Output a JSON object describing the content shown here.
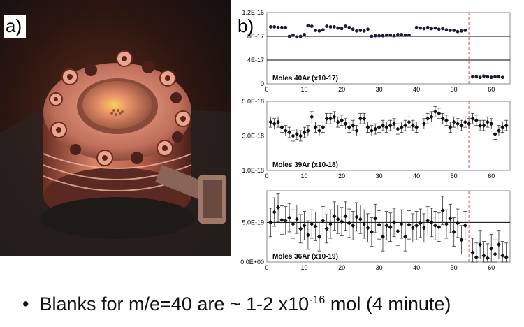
{
  "panel_labels": {
    "a": "a)",
    "b": "b)"
  },
  "photo": {
    "subject": "stainless steel vacuum flange with bolts glowing under red laser light"
  },
  "bullet": {
    "marker": "•",
    "pre": "Blanks for m/e=40 are ~ 1-2 x10",
    "exp": "-16",
    "post": " mol (4 minute)"
  },
  "colors": {
    "dots": "#1a1a3a",
    "line": "#000000",
    "dashed": "#e05050"
  },
  "chart_data": [
    {
      "type": "scatter",
      "title": "Moles 40Ar (x10-17)",
      "ylim": [
        0,
        1.2e-16
      ],
      "xlim": [
        0,
        65
      ],
      "y_ticks": [
        "0",
        "4E-17",
        "8E-17",
        "1.2E-16"
      ],
      "x_ticks": [
        "0",
        "10",
        "20",
        "30",
        "40",
        "50",
        "60"
      ],
      "hlines": [
        8e-17,
        4e-17
      ],
      "vline_x": 54,
      "error_bars": false,
      "points": [
        [
          1,
          9.6e-17
        ],
        [
          2,
          9.6e-17
        ],
        [
          3,
          9.5e-17
        ],
        [
          4,
          9.5e-17
        ],
        [
          5,
          9.5e-17
        ],
        [
          6,
          8e-17
        ],
        [
          7,
          8.2e-17
        ],
        [
          8,
          7.9e-17
        ],
        [
          9,
          8e-17
        ],
        [
          10,
          8.3e-17
        ],
        [
          11,
          9.8e-17
        ],
        [
          12,
          9.7e-17
        ],
        [
          13,
          9e-17
        ],
        [
          14,
          8.9e-17
        ],
        [
          15,
          9.1e-17
        ],
        [
          16,
          9.7e-17
        ],
        [
          17,
          9.6e-17
        ],
        [
          18,
          9.6e-17
        ],
        [
          19,
          9.4e-17
        ],
        [
          20,
          9.3e-17
        ],
        [
          21,
          9.7e-17
        ],
        [
          22,
          9.5e-17
        ],
        [
          23,
          9.2e-17
        ],
        [
          24,
          8.9e-17
        ],
        [
          25,
          9e-17
        ],
        [
          26,
          8.9e-17
        ],
        [
          27,
          9.2e-17
        ],
        [
          28,
          8e-17
        ],
        [
          29,
          8.1e-17
        ],
        [
          30,
          8.1e-17
        ],
        [
          31,
          8.1e-17
        ],
        [
          32,
          8.2e-17
        ],
        [
          33,
          8.2e-17
        ],
        [
          34,
          8.1e-17
        ],
        [
          35,
          8.3e-17
        ],
        [
          36,
          8.3e-17
        ],
        [
          37,
          8.2e-17
        ],
        [
          38,
          8.2e-17
        ],
        [
          40,
          9.5e-17
        ],
        [
          41,
          9.4e-17
        ],
        [
          42,
          9.3e-17
        ],
        [
          43,
          9.5e-17
        ],
        [
          44,
          9.3e-17
        ],
        [
          45,
          9.4e-17
        ],
        [
          46,
          9.2e-17
        ],
        [
          47,
          9.3e-17
        ],
        [
          48,
          9.1e-17
        ],
        [
          49,
          9e-17
        ],
        [
          50,
          9e-17
        ],
        [
          51,
          8.8e-17
        ],
        [
          52,
          8.9e-17
        ],
        [
          53,
          9e-17
        ],
        [
          55,
          1.2e-17
        ],
        [
          56,
          1.2e-17
        ],
        [
          57,
          1.1e-17
        ],
        [
          58,
          1.3e-17
        ],
        [
          59,
          1.2e-17
        ],
        [
          60,
          1.1e-17
        ],
        [
          61,
          1.2e-17
        ],
        [
          62,
          1.2e-17
        ],
        [
          63,
          1.1e-17
        ]
      ]
    },
    {
      "type": "scatter",
      "title": "Moles 39Ar (x10-18)",
      "ylim": [
        1e-18,
        5e-18
      ],
      "xlim": [
        0,
        65
      ],
      "y_ticks": [
        "1.0E-18",
        "3.0E-18",
        "5.0E-18"
      ],
      "x_ticks": [
        "0",
        "10",
        "20",
        "30",
        "40",
        "50",
        "60"
      ],
      "hlines": [
        3e-18
      ],
      "vline_x": 54,
      "error_bars": true,
      "err": 3e-19,
      "points": [
        [
          1,
          3.8e-18
        ],
        [
          2,
          3.7e-18
        ],
        [
          3,
          3.8e-18
        ],
        [
          4,
          3.5e-18
        ],
        [
          5,
          3.3e-18
        ],
        [
          6,
          3.2e-18
        ],
        [
          7,
          3e-18
        ],
        [
          8,
          3.1e-18
        ],
        [
          9,
          3e-18
        ],
        [
          10,
          3.2e-18
        ],
        [
          11,
          3.3e-18
        ],
        [
          12,
          4.1e-18
        ],
        [
          13,
          3.5e-18
        ],
        [
          14,
          3.3e-18
        ],
        [
          15,
          3.5e-18
        ],
        [
          16,
          4e-18
        ],
        [
          17,
          4e-18
        ],
        [
          18,
          4.1e-18
        ],
        [
          19,
          3.8e-18
        ],
        [
          20,
          3.9e-18
        ],
        [
          21,
          3.7e-18
        ],
        [
          22,
          3.5e-18
        ],
        [
          23,
          3.6e-18
        ],
        [
          24,
          3.3e-18
        ],
        [
          25,
          4e-18
        ],
        [
          26,
          4e-18
        ],
        [
          27,
          3.5e-18
        ],
        [
          28,
          3.3e-18
        ],
        [
          29,
          3.4e-18
        ],
        [
          30,
          3.5e-18
        ],
        [
          31,
          3.6e-18
        ],
        [
          32,
          3.5e-18
        ],
        [
          33,
          3.6e-18
        ],
        [
          34,
          3.7e-18
        ],
        [
          35,
          3.4e-18
        ],
        [
          36,
          3.5e-18
        ],
        [
          37,
          3.6e-18
        ],
        [
          38,
          3.8e-18
        ],
        [
          39,
          3.6e-18
        ],
        [
          40,
          3.5e-18
        ],
        [
          42,
          3.7e-18
        ],
        [
          43,
          4e-18
        ],
        [
          44,
          4.1e-18
        ],
        [
          45,
          4.4e-18
        ],
        [
          46,
          4.3e-18
        ],
        [
          47,
          4e-18
        ],
        [
          48,
          3.9e-18
        ],
        [
          49,
          3.5e-18
        ],
        [
          50,
          3.8e-18
        ],
        [
          51,
          3.7e-18
        ],
        [
          52,
          3.6e-18
        ],
        [
          53,
          3.8e-18
        ],
        [
          54,
          3.7e-18
        ],
        [
          55,
          4e-18
        ],
        [
          56,
          3.9e-18
        ],
        [
          57,
          3.6e-18
        ],
        [
          58,
          3.6e-18
        ],
        [
          59,
          3.8e-18
        ],
        [
          60,
          3.7e-18
        ],
        [
          61,
          3.1e-18
        ],
        [
          62,
          3.3e-18
        ],
        [
          63,
          3.5e-18
        ],
        [
          64,
          3.6e-18
        ]
      ]
    },
    {
      "type": "scatter",
      "title": "Moles 36Ar (x10-19)",
      "ylim": [
        0,
        9e-19
      ],
      "xlim": [
        0,
        65
      ],
      "y_ticks": [
        "0.0E+00",
        "5.0E-19"
      ],
      "x_ticks": [
        "0",
        "10",
        "20",
        "30",
        "40",
        "50",
        "60"
      ],
      "hlines": [
        5e-19
      ],
      "vline_x": 54,
      "error_bars": true,
      "err": 1.8e-19,
      "points": [
        [
          1,
          5e-19
        ],
        [
          2,
          6.3e-19
        ],
        [
          3,
          6.9e-19
        ],
        [
          4,
          5.3e-19
        ],
        [
          5,
          5.2e-19
        ],
        [
          6,
          5.6e-19
        ],
        [
          7,
          4.8e-19
        ],
        [
          8,
          5.4e-19
        ],
        [
          9,
          4.2e-19
        ],
        [
          10,
          4.6e-19
        ],
        [
          11,
          3.4e-19
        ],
        [
          12,
          4.8e-19
        ],
        [
          13,
          4.5e-19
        ],
        [
          14,
          3.2e-19
        ],
        [
          15,
          5.2e-19
        ],
        [
          16,
          4.2e-19
        ],
        [
          17,
          4.8e-19
        ],
        [
          18,
          5.8e-19
        ],
        [
          19,
          5.4e-19
        ],
        [
          20,
          5.1e-19
        ],
        [
          21,
          5.8e-19
        ],
        [
          22,
          4.9e-19
        ],
        [
          23,
          4.6e-19
        ],
        [
          24,
          5.7e-19
        ],
        [
          25,
          5.4e-19
        ],
        [
          26,
          4.8e-19
        ],
        [
          27,
          4.3e-19
        ],
        [
          28,
          3.8e-19
        ],
        [
          29,
          5.5e-19
        ],
        [
          30,
          4.7e-19
        ],
        [
          31,
          3.2e-19
        ],
        [
          32,
          4.6e-19
        ],
        [
          33,
          4.4e-19
        ],
        [
          34,
          5e-19
        ],
        [
          35,
          3.9e-19
        ],
        [
          36,
          4.8e-19
        ],
        [
          37,
          3.2e-19
        ],
        [
          38,
          4.7e-19
        ],
        [
          39,
          4.3e-19
        ],
        [
          40,
          4.6e-19
        ],
        [
          41,
          4.9e-19
        ],
        [
          42,
          4.3e-19
        ],
        [
          43,
          5.2e-19
        ],
        [
          44,
          5e-19
        ],
        [
          45,
          4.6e-19
        ],
        [
          46,
          4.4e-19
        ],
        [
          47,
          6.5e-19
        ],
        [
          48,
          4.8e-19
        ],
        [
          49,
          5.5e-19
        ],
        [
          50,
          3.8e-19
        ],
        [
          51,
          4.9e-19
        ],
        [
          52,
          2.8e-19
        ],
        [
          53,
          4.6e-19
        ],
        [
          55,
          1.2e-19
        ],
        [
          56,
          6e-20
        ],
        [
          57,
          2.2e-19
        ],
        [
          58,
          8e-20
        ],
        [
          59,
          5e-20
        ],
        [
          60,
          1.7e-19
        ],
        [
          61,
          1e-19
        ],
        [
          62,
          2.2e-19
        ],
        [
          63,
          8e-20
        ],
        [
          64,
          6e-20
        ]
      ]
    }
  ]
}
